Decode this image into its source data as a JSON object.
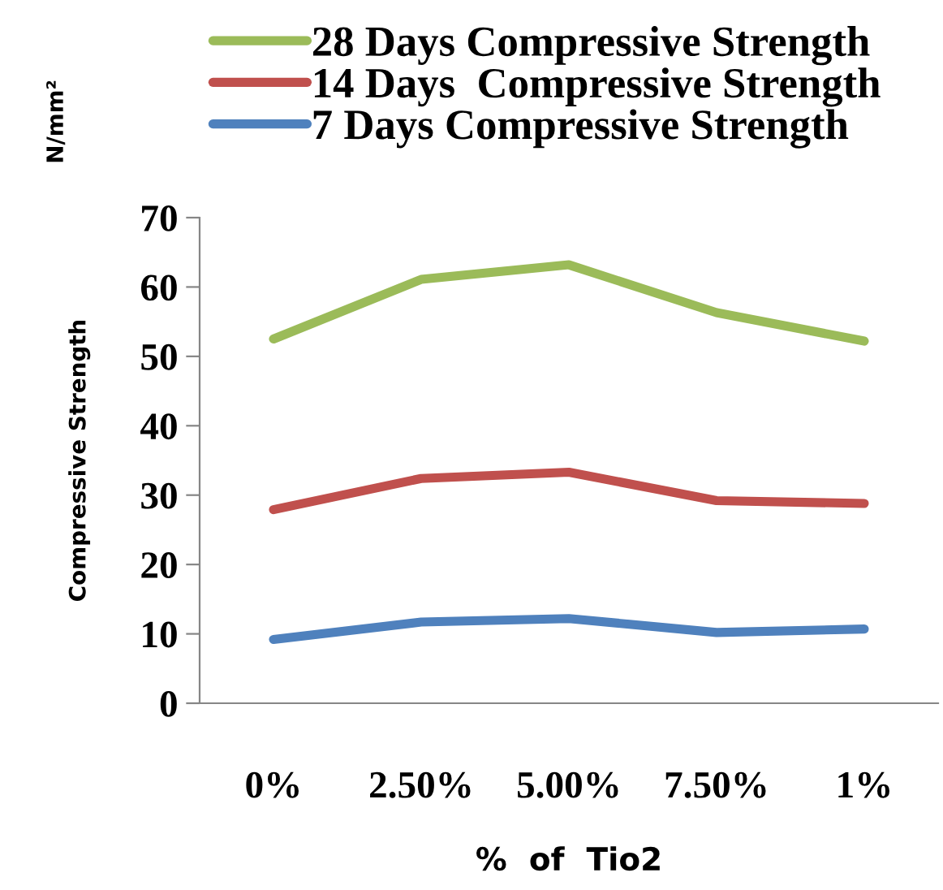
{
  "chart_data": {
    "type": "line",
    "categories": [
      "0%",
      "2.50%",
      "5.00%",
      "7.50%",
      "1%"
    ],
    "series": [
      {
        "name": "28 Days Compressive Strength",
        "color": "#9bbb59",
        "values": [
          52.5,
          61.1,
          63.2,
          56.3,
          52.2
        ]
      },
      {
        "name": "14 Days  Compressive Strength",
        "color": "#c0504d",
        "values": [
          27.9,
          32.4,
          33.3,
          29.2,
          28.8
        ]
      },
      {
        "name": "7 Days Compressive Strength",
        "color": "#4f81bd",
        "values": [
          9.2,
          11.7,
          12.2,
          10.2,
          10.7
        ]
      }
    ],
    "xlabel": "%  of  Tio2",
    "ylabel": "Compressive Strength",
    "annotations": [
      "N/mm²"
    ],
    "ylim": [
      0,
      70
    ],
    "yticks": [
      0,
      10,
      20,
      30,
      40,
      50,
      60,
      70
    ],
    "grid": false,
    "legend": "top",
    "marker": "none",
    "line_style": "solid"
  }
}
